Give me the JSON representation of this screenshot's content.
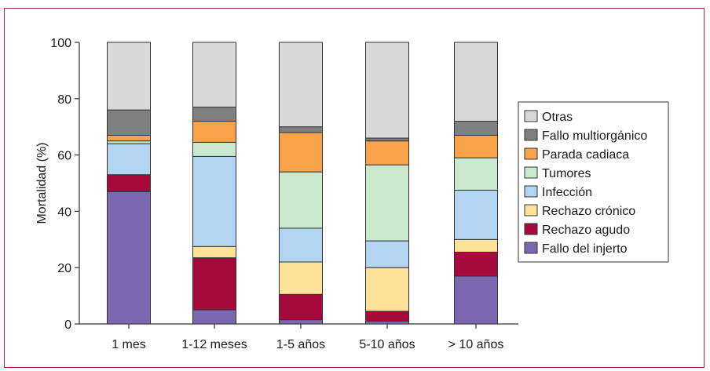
{
  "chart_data": {
    "type": "bar",
    "stacked": true,
    "ylabel": "Mortalidad (%)",
    "xlabel": "",
    "ylim": [
      0,
      100
    ],
    "yticks": [
      0,
      20,
      40,
      60,
      80,
      100
    ],
    "grid": false,
    "legend_position": "right",
    "categories": [
      "1 mes",
      "1-12 meses",
      "1-5 años",
      "5-10 años",
      "> 10 años"
    ],
    "series": [
      {
        "name": "Fallo del injerto",
        "color": "#7b68b0",
        "values": [
          47,
          5,
          1.5,
          1,
          17
        ]
      },
      {
        "name": "Rechazo agudo",
        "color": "#a6093c",
        "values": [
          6,
          18.5,
          9,
          3.5,
          8.5
        ]
      },
      {
        "name": "Rechazo crónico",
        "color": "#fde39a",
        "values": [
          0,
          4,
          11.5,
          15.5,
          4.5
        ]
      },
      {
        "name": "Infección",
        "color": "#b3d4f0",
        "values": [
          11,
          32,
          12,
          9.5,
          17.5
        ]
      },
      {
        "name": "Tumores",
        "color": "#c9e8ce",
        "values": [
          1,
          5,
          20,
          27,
          11.5
        ]
      },
      {
        "name": "Parada cadiaca",
        "color": "#f8a34a",
        "values": [
          2,
          7.5,
          14,
          8.5,
          8
        ]
      },
      {
        "name": "Fallo multiorgánico",
        "color": "#808080",
        "values": [
          9,
          5,
          2,
          1,
          5
        ]
      },
      {
        "name": "Otras",
        "color": "#d9d9d9",
        "values": [
          24,
          23,
          30,
          34,
          28
        ]
      }
    ]
  }
}
